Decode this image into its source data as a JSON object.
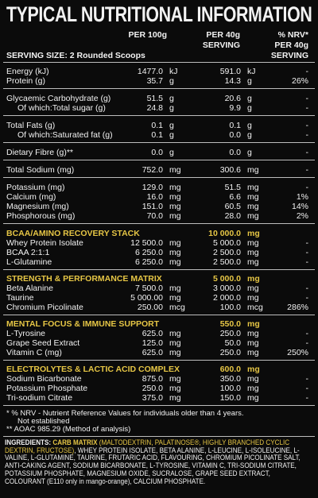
{
  "header": {
    "title": "TYPICAL NUTRITIONAL INFORMATION",
    "columns": [
      [
        "PER 100g"
      ],
      [
        "PER 40g",
        "SERVING"
      ],
      [
        "% NRV*",
        "PER 40g",
        "SERVING"
      ]
    ],
    "serving_size": "SERVING SIZE: 2 Rounded Scoops"
  },
  "groups": [
    {
      "rows": [
        {
          "name": "Energy (kJ)",
          "per_100g": "1477.0",
          "per_40g": "591.0",
          "unit": "kJ",
          "nrv": "-"
        },
        {
          "name": "Protein (g)",
          "per_100g": "35.7",
          "per_40g": "14.3",
          "unit": "g",
          "nrv": "26%"
        }
      ]
    },
    {
      "rows": [
        {
          "name": "Glycaemic Carbohydrate (g)",
          "per_100g": "51.5",
          "per_40g": "20.6",
          "unit": "g",
          "nrv": "-"
        },
        {
          "name": "Of which:Total sugar (g)",
          "per_100g": "24.8",
          "per_40g": "9.9",
          "unit": "g",
          "nrv": "-",
          "sub": true
        }
      ]
    },
    {
      "rows": [
        {
          "name": "Total Fats (g)",
          "per_100g": "0.1",
          "per_40g": "0.1",
          "unit": "g",
          "nrv": "-"
        },
        {
          "name": "Of which:Saturated fat (g)",
          "per_100g": "0.1",
          "per_40g": "0.0",
          "unit": "g",
          "nrv": "-",
          "sub": true
        }
      ]
    },
    {
      "rows": [
        {
          "name": "Dietary Fibre (g)**",
          "per_100g": "0.0",
          "per_40g": "0.0",
          "unit": "g",
          "nrv": "-"
        }
      ]
    },
    {
      "rows": [
        {
          "name": "Total Sodium (mg)",
          "per_100g": "752.0",
          "per_40g": "300.6",
          "unit": "mg",
          "nrv": "-"
        }
      ]
    },
    {
      "rows": [
        {
          "name": "Potassium (mg)",
          "per_100g": "129.0",
          "per_40g": "51.5",
          "unit": "mg",
          "nrv": "-"
        },
        {
          "name": "Calcium (mg)",
          "per_100g": "16.0",
          "per_40g": "6.6",
          "unit": "mg",
          "nrv": "1%"
        },
        {
          "name": "Magnesium (mg)",
          "per_100g": "151.0",
          "per_40g": "60.5",
          "unit": "mg",
          "nrv": "14%"
        },
        {
          "name": "Phosphorous (mg)",
          "per_100g": "70.0",
          "per_40g": "28.0",
          "unit": "mg",
          "nrv": "2%"
        }
      ]
    }
  ],
  "sections": [
    {
      "title": "BCAA/AMINO RECOVERY STACK",
      "per_40g": "10 000.0",
      "unit": "mg",
      "rows": [
        {
          "name": "Whey Protein Isolate",
          "per_100g": "12 500.0",
          "per_40g": "5 000.0",
          "unit": "mg",
          "nrv": "-"
        },
        {
          "name": "BCAA 2:1:1",
          "per_100g": "6 250.0",
          "per_40g": "2 500.0",
          "unit": "mg",
          "nrv": "-"
        },
        {
          "name": "L-Glutamine",
          "per_100g": "6 250.0",
          "per_40g": "2 500.0",
          "unit": "mg",
          "nrv": "-"
        }
      ]
    },
    {
      "title": "STRENGTH & PERFORMANCE MATRIX",
      "per_40g": "5 000.0",
      "unit": "mg",
      "rows": [
        {
          "name": "Beta Alanine",
          "per_100g": "7 500.0",
          "per_40g": "3 000.0",
          "unit": "mg",
          "nrv": "-"
        },
        {
          "name": "Taurine",
          "per_100g": "5 000.00",
          "per_40g": "2 000.0",
          "unit": "mg",
          "nrv": "-"
        },
        {
          "name": "Chromium Picolinate",
          "per_100g": "250.00",
          "per_40g": "100.0",
          "unit": "mcg",
          "nrv": "286%"
        }
      ]
    },
    {
      "title": "MENTAL FOCUS & IMMUNE SUPPORT",
      "per_40g": "550.0",
      "unit": "mg",
      "rows": [
        {
          "name": "L-Tyrosine",
          "per_100g": "625.0",
          "per_40g": "250.0",
          "unit": "mg",
          "nrv": "-"
        },
        {
          "name": "Grape Seed Extract",
          "per_100g": "125.0",
          "per_40g": "50.0",
          "unit": "mg",
          "nrv": "-"
        },
        {
          "name": "Vitamin C (mg)",
          "per_100g": "625.0",
          "per_40g": "250.0",
          "unit": "mg",
          "nrv": "250%"
        }
      ]
    },
    {
      "title": "ELECTROLYTES & LACTIC ACID COMPLEX",
      "per_40g": "600.0",
      "unit": "mg",
      "rows": [
        {
          "name": "Sodium Bicarbonate",
          "per_100g": "875.0",
          "per_40g": "350.0",
          "unit": "mg",
          "nrv": "-"
        },
        {
          "name": "Potassium Phosphate",
          "per_100g": "250.0",
          "per_40g": "100.0",
          "unit": "mg",
          "nrv": "-"
        },
        {
          "name": "Tri-sodium Citrate",
          "per_100g": "375.0",
          "per_40g": "150.0",
          "unit": "mg",
          "nrv": "-"
        }
      ]
    }
  ],
  "footnotes": [
    "*  % NRV - Nutrient Reference Values for individuals older than 4 years.",
    "Not established",
    "** AOAC 985.29 (Method of analysis)"
  ],
  "ingredients": {
    "label": "INGREDIENTS:",
    "carb_matrix": "CARB MATRIX",
    "carb_matrix_detail": "(MALTODEXTRIN, PALATINOSE®, HIGHLY BRANCHED CYCLIC DEXTRIN, FRUCTOSE)",
    "rest": ", WHEY PROTEIN ISOLATE, BETA ALANINE, L-LEUCINE, L-ISOLEUCINE, L-VALINE, L-GLUTAMINE, TAURINE, FRUTARIC ACID, FLAVOURING, CHROMIUM PICOLINATE SALT, ANTI-CAKING AGENT, SODIUM BICARBONATE, L-TYROSINE, VITAMIN C, TRI-SODIUM CITRATE, POTASSIUM PHOSPHATE, MAGNESIUM OXIDE, SUCRALOSE, GRAPE SEED EXTRACT, COLOURANT (E110 only in mango-orange), CALCIUM PHOSPHATE."
  }
}
